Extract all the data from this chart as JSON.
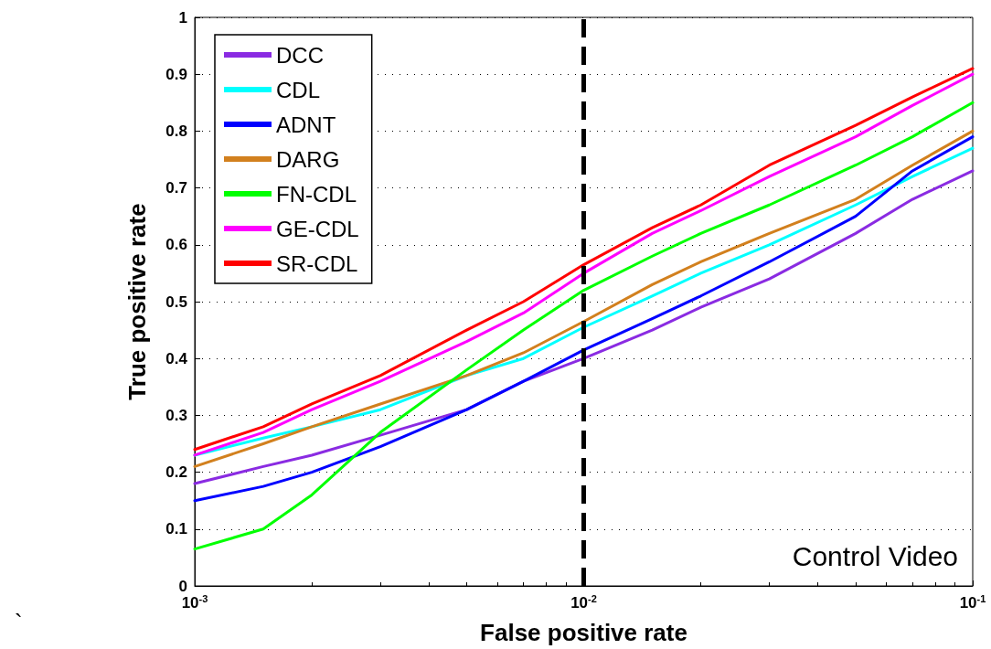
{
  "chart_data": {
    "type": "line",
    "xlabel": "False positive rate",
    "ylabel": "True positive rate",
    "x": [
      0.001,
      0.0015,
      0.002,
      0.003,
      0.005,
      0.007,
      0.01,
      0.015,
      0.02,
      0.03,
      0.05,
      0.07,
      0.1
    ],
    "series": [
      {
        "name": "DCC",
        "color": "#8a2be2",
        "values": [
          0.18,
          0.21,
          0.23,
          0.265,
          0.31,
          0.36,
          0.4,
          0.45,
          0.49,
          0.54,
          0.62,
          0.68,
          0.73
        ]
      },
      {
        "name": "CDL",
        "color": "#00ffff",
        "values": [
          0.23,
          0.26,
          0.28,
          0.31,
          0.37,
          0.4,
          0.455,
          0.51,
          0.55,
          0.6,
          0.67,
          0.72,
          0.77
        ]
      },
      {
        "name": "ADNT",
        "color": "#0000ff",
        "values": [
          0.15,
          0.175,
          0.2,
          0.245,
          0.31,
          0.36,
          0.415,
          0.47,
          0.51,
          0.57,
          0.65,
          0.73,
          0.79
        ]
      },
      {
        "name": "DARG",
        "color": "#d2801e",
        "values": [
          0.21,
          0.25,
          0.28,
          0.32,
          0.37,
          0.41,
          0.465,
          0.53,
          0.57,
          0.62,
          0.68,
          0.74,
          0.8
        ]
      },
      {
        "name": "FN-CDL",
        "color": "#00ff00",
        "values": [
          0.065,
          0.1,
          0.16,
          0.27,
          0.38,
          0.45,
          0.52,
          0.58,
          0.62,
          0.67,
          0.74,
          0.79,
          0.85
        ]
      },
      {
        "name": "GE-CDL",
        "color": "#ff00ff",
        "values": [
          0.23,
          0.27,
          0.31,
          0.36,
          0.43,
          0.48,
          0.55,
          0.62,
          0.66,
          0.72,
          0.79,
          0.845,
          0.9
        ]
      },
      {
        "name": "SR-CDL",
        "color": "#ff0000",
        "values": [
          0.24,
          0.28,
          0.32,
          0.37,
          0.45,
          0.5,
          0.565,
          0.63,
          0.67,
          0.74,
          0.81,
          0.86,
          0.91
        ]
      }
    ],
    "log": "x",
    "xlim": [
      0.001,
      0.1
    ],
    "xticks": [
      {
        "value": 0.001,
        "label": "10$^{-3}$"
      },
      {
        "value": 0.01,
        "label": "10$^{-2}$"
      },
      {
        "value": 0.1,
        "label": "10$^{-1}$"
      }
    ],
    "ylim": [
      0,
      1
    ],
    "yticks": [
      0,
      0.1,
      0.2,
      0.3,
      0.4,
      0.5,
      0.6,
      0.7,
      0.8,
      0.9,
      1
    ],
    "ref_lines": [
      {
        "axis": "x",
        "value": 0.01,
        "color": "#000000",
        "line_style": "dashed"
      }
    ],
    "annotations": [
      "Control Video",
      "`"
    ],
    "grid": "y",
    "legend": "top left",
    "marker": "none",
    "line_style": "solid"
  }
}
